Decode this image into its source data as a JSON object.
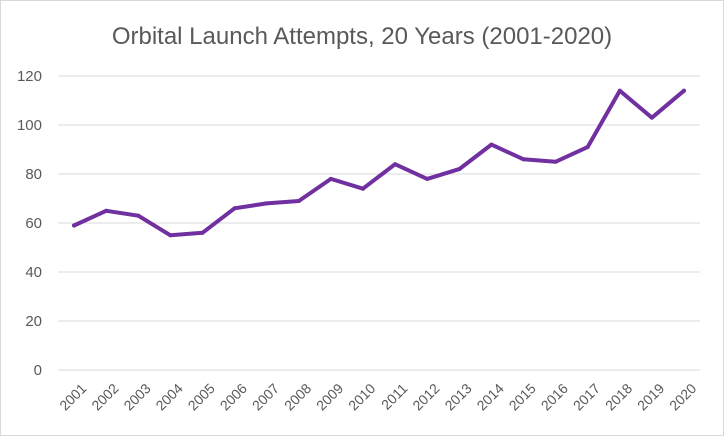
{
  "chart_data": {
    "type": "line",
    "title": "Orbital Launch Attempts, 20 Years (2001-2020)",
    "xlabel": "",
    "ylabel": "",
    "categories": [
      "2001",
      "2002",
      "2003",
      "2004",
      "2005",
      "2006",
      "2007",
      "2008",
      "2009",
      "2010",
      "2011",
      "2012",
      "2013",
      "2014",
      "2015",
      "2016",
      "2017",
      "2018",
      "2019",
      "2020"
    ],
    "series": [
      {
        "values": [
          59,
          65,
          63,
          55,
          56,
          66,
          68,
          69,
          78,
          74,
          84,
          78,
          82,
          92,
          86,
          85,
          91,
          114,
          103,
          114
        ]
      }
    ],
    "ylim": [
      0,
      120
    ],
    "yticks": [
      0,
      20,
      40,
      60,
      80,
      100,
      120
    ],
    "grid": true,
    "legend": "none",
    "colors": {
      "series": "#7030a0",
      "grid": "#d9d9d9",
      "text": "#595959"
    }
  }
}
